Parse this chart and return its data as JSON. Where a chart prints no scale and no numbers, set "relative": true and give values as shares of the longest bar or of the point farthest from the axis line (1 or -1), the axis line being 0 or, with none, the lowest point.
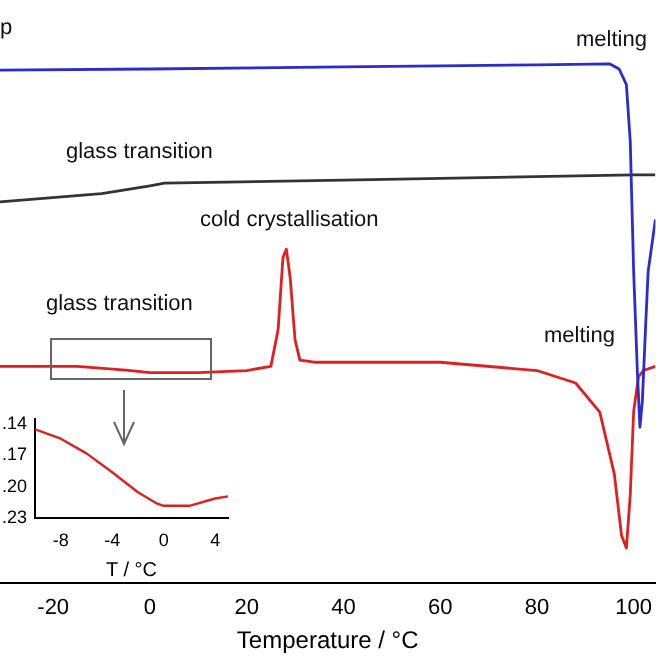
{
  "chart_data": [
    {
      "type": "line",
      "relative": true,
      "xlabel": "Temperature / °C",
      "xlim": [
        -31,
        104.5
      ],
      "xticks": [
        -20,
        0,
        20,
        40,
        60,
        80,
        100
      ],
      "legend": false,
      "series": [
        {
          "color": "#2b2bd0",
          "x": [
            -31,
            0,
            40,
            80,
            95,
            97,
            98.5,
            99.3,
            100,
            100.8,
            101.3,
            101.8,
            102.5,
            103,
            104.5
          ],
          "values": [
            0.988,
            0.99,
            0.994,
            0.998,
            1.0,
            0.99,
            0.96,
            0.85,
            0.6,
            0.4,
            0.3,
            0.35,
            0.5,
            0.6,
            0.7
          ]
        },
        {
          "color": "#333333",
          "x": [
            -31,
            -10,
            0,
            3,
            40,
            100,
            104.5
          ],
          "values": [
            0.734,
            0.75,
            0.765,
            0.77,
            0.776,
            0.786,
            0.786
          ]
        },
        {
          "color": "#e02020",
          "x": [
            -31,
            -15,
            -5,
            0,
            10,
            20,
            25,
            26.5,
            27.5,
            28.2,
            29,
            30,
            31,
            34,
            60,
            80,
            88,
            93,
            96,
            97.5,
            98.5,
            99.3,
            100,
            101,
            102,
            104.5
          ],
          "values": [
            0.417,
            0.417,
            0.41,
            0.405,
            0.405,
            0.409,
            0.417,
            0.488,
            0.627,
            0.643,
            0.587,
            0.468,
            0.429,
            0.425,
            0.425,
            0.409,
            0.385,
            0.329,
            0.21,
            0.091,
            0.067,
            0.17,
            0.33,
            0.397,
            0.409,
            0.417
          ]
        }
      ],
      "annotations": [
        "p",
        "melting",
        "glass transition",
        "cold crystallisation",
        "glass transition",
        "melting"
      ]
    },
    {
      "type": "line",
      "xlabel": "T / °C",
      "xlim": [
        -10,
        5
      ],
      "xticks": [
        -8,
        -4,
        0,
        4
      ],
      "ylim": [
        0.23,
        0.135
      ],
      "yticks": [
        {
          "value": 0.14,
          "label": ".14"
        },
        {
          "value": 0.17,
          "label": ".17"
        },
        {
          "value": 0.2,
          "label": ".20"
        },
        {
          "value": 0.23,
          "label": ".23"
        }
      ],
      "legend": false,
      "series": [
        {
          "color": "#e02020",
          "x": [
            -10,
            -8,
            -6,
            -4,
            -2,
            -0.5,
            0,
            2,
            4,
            5
          ],
          "values": [
            0.145,
            0.154,
            0.168,
            0.186,
            0.205,
            0.216,
            0.218,
            0.218,
            0.211,
            0.209
          ]
        }
      ]
    }
  ]
}
